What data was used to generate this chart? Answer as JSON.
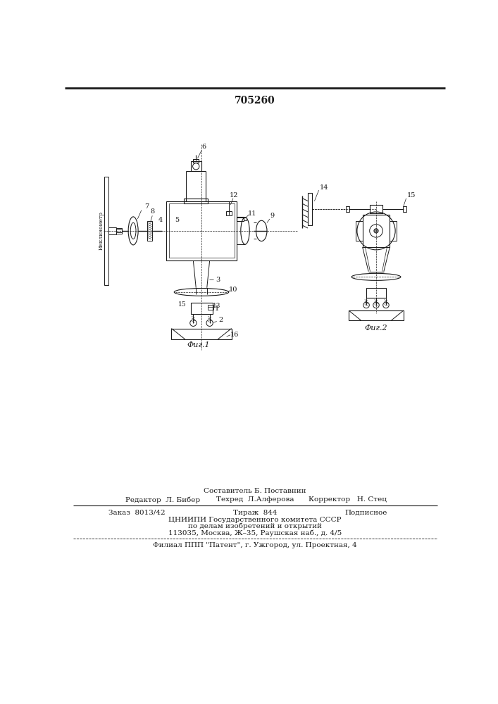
{
  "title": "705260",
  "title_fontsize": 10,
  "background_color": "#ffffff",
  "fig1_caption": "Фиг.1",
  "fig2_caption": "Фиг.2",
  "footer_line1_left": "Редактор  Л. Бибер",
  "footer_line1_center_top": "Составитель Б. Поставнин",
  "footer_line1_center": "Техред  Л.Алферова",
  "footer_line1_right": "Корректор   Н. Стец",
  "footer_line2_left": "Заказ  8013/42",
  "footer_line2_center": "Тираж  844",
  "footer_line2_right": "Подписное",
  "footer_line3": "ЦНИИПИ Государственного комитета СССР",
  "footer_line4": "по делам изобретений и открытий",
  "footer_line5": "113035, Москва, Ж–35, Раушская наб., д. 4/5",
  "footer_line6": "Филиал ППП \"Патент\", г. Ужгород, ул. Проектная, 4",
  "text_color": "#1a1a1a",
  "line_color": "#1a1a1a",
  "font_size_small": 7,
  "font_size_footer": 7.5
}
